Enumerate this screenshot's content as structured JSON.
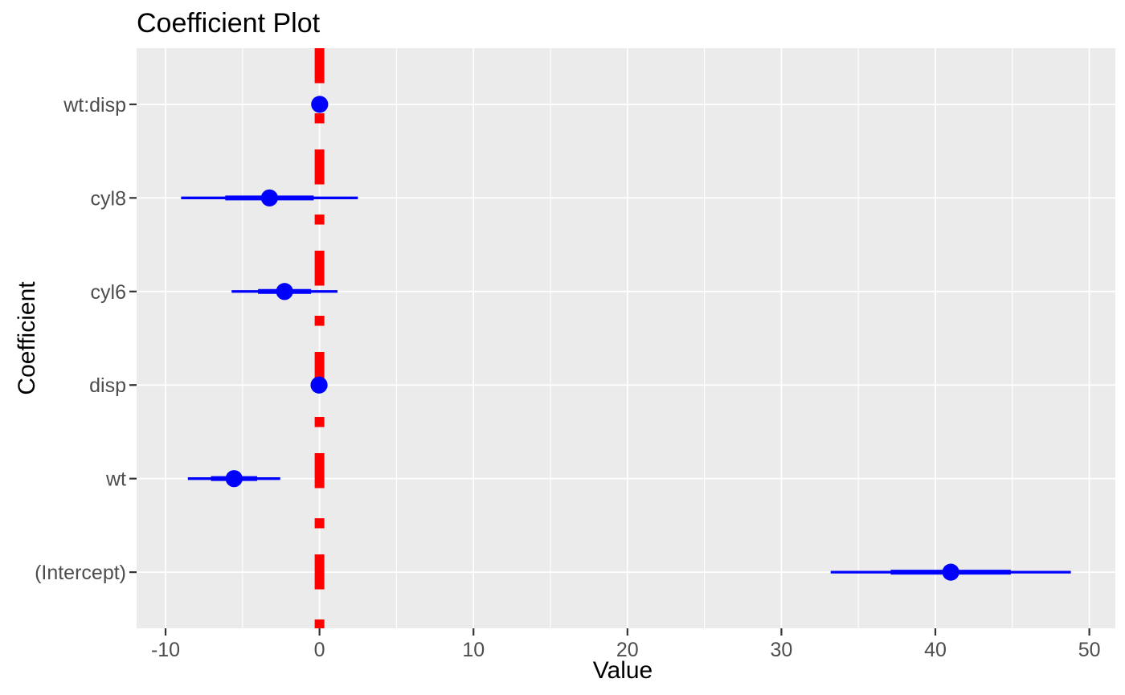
{
  "chart_data": {
    "type": "scatter",
    "subtype": "coefficient-dot-whisker",
    "title": "Coefficient Plot",
    "xlabel": "Value",
    "ylabel": "Coefficient",
    "legend": "none",
    "grid": "on",
    "categories_top_to_bottom": [
      "wt:disp",
      "cyl8",
      "cyl6",
      "disp",
      "wt",
      "(Intercept)"
    ],
    "coefficients": [
      {
        "name": "wt:disp",
        "estimate": 0.01,
        "inner_low": 0.0,
        "inner_high": 0.02,
        "outer_low": -0.01,
        "outer_high": 0.03
      },
      {
        "name": "cyl8",
        "estimate": -3.25,
        "inner_low": -6.12,
        "inner_high": -0.38,
        "outer_low": -8.99,
        "outer_high": 2.49
      },
      {
        "name": "cyl6",
        "estimate": -2.27,
        "inner_low": -3.99,
        "inner_high": -0.55,
        "outer_low": -5.71,
        "outer_high": 1.17
      },
      {
        "name": "disp",
        "estimate": -0.03,
        "inner_low": -0.05,
        "inner_high": -0.01,
        "outer_low": -0.06,
        "outer_high": 0.0
      },
      {
        "name": "wt",
        "estimate": -5.55,
        "inner_low": -7.05,
        "inner_high": -4.05,
        "outer_low": -8.55,
        "outer_high": -2.55
      },
      {
        "name": "(Intercept)",
        "estimate": 41.0,
        "inner_low": 37.1,
        "inner_high": 44.9,
        "outer_low": 33.2,
        "outer_high": 48.8
      }
    ],
    "x_ticks": [
      -10,
      0,
      10,
      20,
      30,
      40,
      50
    ],
    "x_minor_ticks": [
      -5,
      5,
      15,
      25,
      35,
      45
    ],
    "xlim": [
      -11.88,
      51.69
    ],
    "zero_line": {
      "x": 0,
      "style": "dashed"
    },
    "colors": {
      "point": "#0000FF",
      "ci_line": "#0000FF",
      "zero_line": "#FF0000",
      "panel_bg": "#EBEBEB",
      "grid": "#FFFFFF",
      "tick_mark": "#333333",
      "tick_text": "#4D4D4D",
      "title_text": "#000000"
    }
  }
}
